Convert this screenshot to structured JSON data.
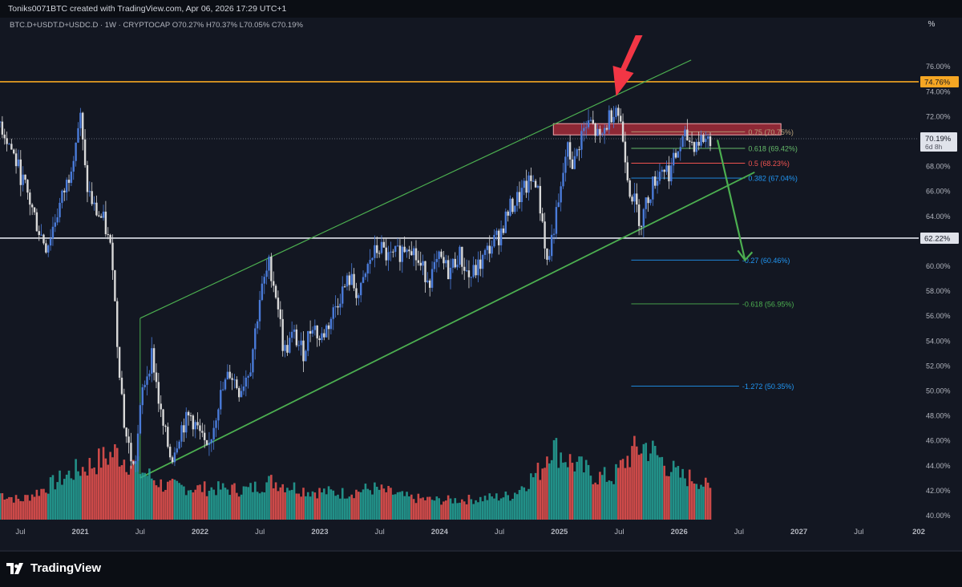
{
  "credit": "Toniks0071BTC created with TradingView.com, Apr 06, 2026 17:29 UTC+1",
  "legend": "BTC.D+USDT.D+USDC.D · 1W · CRYPTOCAP  O70.27%  H70.37%  L70.05%  C70.19%",
  "scale_unit": "%",
  "brand": "TradingView",
  "colors": {
    "background": "#131722",
    "up_candle": "#4a7bd9",
    "down_candle": "#d9d9d9",
    "volume_up": "#26a69a",
    "volume_down": "#ef5350",
    "channel": "#4caf50",
    "resistance": "#f5a623",
    "support": "#e0e3eb",
    "zone": "#f23645",
    "arrow_red": "#f23645",
    "arrow_green": "#4caf50"
  },
  "chart_data": {
    "type": "candlestick",
    "timeframe": "1W",
    "y_scale": "percent",
    "ylim": [
      39.2,
      77.2
    ],
    "y_ticks": [
      "76.00%",
      "74.00%",
      "72.00%",
      "70.00%",
      "68.00%",
      "66.00%",
      "64.00%",
      "62.00%",
      "60.00%",
      "58.00%",
      "56.00%",
      "54.00%",
      "52.00%",
      "50.00%",
      "48.00%",
      "46.00%",
      "44.00%",
      "42.00%",
      "40.00%"
    ],
    "x_ticks": [
      "Jul",
      "2021",
      "Jul",
      "2022",
      "Jul",
      "2023",
      "Jul",
      "2024",
      "Jul",
      "2025",
      "Jul",
      "2026",
      "Jul",
      "2027",
      "Jul",
      "202"
    ],
    "x_tick_dates": [
      2020.5,
      2021,
      2021.5,
      2022,
      2022.5,
      2023,
      2023.5,
      2024,
      2024.5,
      2025,
      2025.5,
      2026,
      2026.5,
      2027,
      2027.5,
      2028
    ],
    "x_range": [
      2020.33,
      2028.0
    ],
    "last_value": "70.19%",
    "countdown": "6d 8h",
    "price_path": [
      [
        2020.33,
        71.5
      ],
      [
        2020.42,
        69.5
      ],
      [
        2020.55,
        66.0
      ],
      [
        2020.65,
        63.0
      ],
      [
        2020.72,
        61.5
      ],
      [
        2020.8,
        64.0
      ],
      [
        2020.9,
        67.0
      ],
      [
        2021.0,
        72.0
      ],
      [
        2021.05,
        66.5
      ],
      [
        2021.12,
        64.5
      ],
      [
        2021.2,
        63.5
      ],
      [
        2021.27,
        60.5
      ],
      [
        2021.3,
        55.0
      ],
      [
        2021.37,
        47.0
      ],
      [
        2021.45,
        43.5
      ],
      [
        2021.52,
        50.0
      ],
      [
        2021.6,
        53.0
      ],
      [
        2021.68,
        47.5
      ],
      [
        2021.76,
        44.5
      ],
      [
        2021.84,
        47.0
      ],
      [
        2021.92,
        48.0
      ],
      [
        2022.0,
        46.5
      ],
      [
        2022.06,
        44.8
      ],
      [
        2022.15,
        49.0
      ],
      [
        2022.25,
        51.5
      ],
      [
        2022.33,
        50.0
      ],
      [
        2022.42,
        52.0
      ],
      [
        2022.5,
        57.5
      ],
      [
        2022.58,
        60.2
      ],
      [
        2022.65,
        57.0
      ],
      [
        2022.7,
        53.0
      ],
      [
        2022.78,
        54.5
      ],
      [
        2022.86,
        53.0
      ],
      [
        2022.94,
        55.5
      ],
      [
        2023.0,
        54.0
      ],
      [
        2023.08,
        55.5
      ],
      [
        2023.16,
        57.5
      ],
      [
        2023.25,
        59.0
      ],
      [
        2023.33,
        57.5
      ],
      [
        2023.42,
        60.5
      ],
      [
        2023.5,
        61.5
      ],
      [
        2023.58,
        60.5
      ],
      [
        2023.66,
        61.0
      ],
      [
        2023.75,
        62.0
      ],
      [
        2023.83,
        60.0
      ],
      [
        2023.92,
        59.0
      ],
      [
        2024.0,
        60.5
      ],
      [
        2024.08,
        59.5
      ],
      [
        2024.16,
        61.0
      ],
      [
        2024.25,
        59.0
      ],
      [
        2024.33,
        60.0
      ],
      [
        2024.42,
        61.5
      ],
      [
        2024.5,
        62.5
      ],
      [
        2024.58,
        64.5
      ],
      [
        2024.66,
        65.5
      ],
      [
        2024.74,
        66.5
      ],
      [
        2024.8,
        67.0
      ],
      [
        2024.86,
        63.5
      ],
      [
        2024.9,
        60.0
      ],
      [
        2024.95,
        63.0
      ],
      [
        2025.0,
        65.0
      ],
      [
        2025.06,
        69.5
      ],
      [
        2025.12,
        68.0
      ],
      [
        2025.18,
        70.5
      ],
      [
        2025.26,
        71.5
      ],
      [
        2025.34,
        70.0
      ],
      [
        2025.42,
        72.0
      ],
      [
        2025.47,
        73.0
      ],
      [
        2025.51,
        71.5
      ],
      [
        2025.55,
        69.0
      ],
      [
        2025.58,
        66.5
      ],
      [
        2025.63,
        65.0
      ],
      [
        2025.68,
        63.5
      ],
      [
        2025.74,
        65.5
      ],
      [
        2025.8,
        67.0
      ],
      [
        2025.86,
        68.0
      ],
      [
        2025.92,
        67.5
      ],
      [
        2026.0,
        69.5
      ],
      [
        2026.06,
        70.3
      ],
      [
        2026.12,
        69.8
      ],
      [
        2026.2,
        70.2
      ],
      [
        2026.26,
        70.19
      ]
    ],
    "volume_path": [
      [
        2020.33,
        0.22
      ],
      [
        2020.5,
        0.16
      ],
      [
        2020.7,
        0.26
      ],
      [
        2020.95,
        0.4
      ],
      [
        2021.1,
        0.46
      ],
      [
        2021.3,
        0.56
      ],
      [
        2021.45,
        0.45
      ],
      [
        2021.7,
        0.28
      ],
      [
        2022.0,
        0.26
      ],
      [
        2022.4,
        0.25
      ],
      [
        2022.6,
        0.32
      ],
      [
        2022.9,
        0.24
      ],
      [
        2023.2,
        0.22
      ],
      [
        2023.45,
        0.26
      ],
      [
        2023.75,
        0.18
      ],
      [
        2024.0,
        0.16
      ],
      [
        2024.3,
        0.17
      ],
      [
        2024.6,
        0.2
      ],
      [
        2024.85,
        0.42
      ],
      [
        2024.92,
        0.62
      ],
      [
        2025.1,
        0.48
      ],
      [
        2025.3,
        0.36
      ],
      [
        2025.45,
        0.35
      ],
      [
        2025.6,
        0.55
      ],
      [
        2025.72,
        0.62
      ],
      [
        2025.85,
        0.5
      ],
      [
        2026.0,
        0.36
      ],
      [
        2026.15,
        0.34
      ],
      [
        2026.26,
        0.25
      ]
    ],
    "levels": [
      {
        "label": "74.76%",
        "y": 74.76,
        "kind": "resistance"
      },
      {
        "label": "62.22%",
        "y": 62.22,
        "kind": "support"
      }
    ],
    "fib_levels": [
      {
        "label": "0.75 (70.75%)",
        "y": 70.75
      },
      {
        "label": "0.618 (69.42%)",
        "y": 69.42
      },
      {
        "label": "0.5 (68.23%)",
        "y": 68.23
      },
      {
        "label": "0.382 (67.04%)",
        "y": 67.04
      },
      {
        "label": "-0.27 (60.46%)",
        "y": 60.46
      },
      {
        "label": "-0.618 (56.95%)",
        "y": 56.95
      },
      {
        "label": "-1.272 (50.35%)",
        "y": 50.35
      }
    ],
    "channel_upper": [
      [
        2021.5,
        55.8
      ],
      [
        2026.1,
        76.5
      ]
    ],
    "channel_lower": [
      [
        2021.5,
        43.0
      ],
      [
        2026.63,
        67.5
      ]
    ],
    "zone": {
      "x": [
        2024.95,
        2026.85
      ],
      "y": [
        70.5,
        71.4
      ]
    },
    "projection": [
      [
        2026.32,
        70.1
      ],
      [
        2026.55,
        60.46
      ]
    ],
    "callout_target": [
      2025.46,
      73.6
    ]
  }
}
